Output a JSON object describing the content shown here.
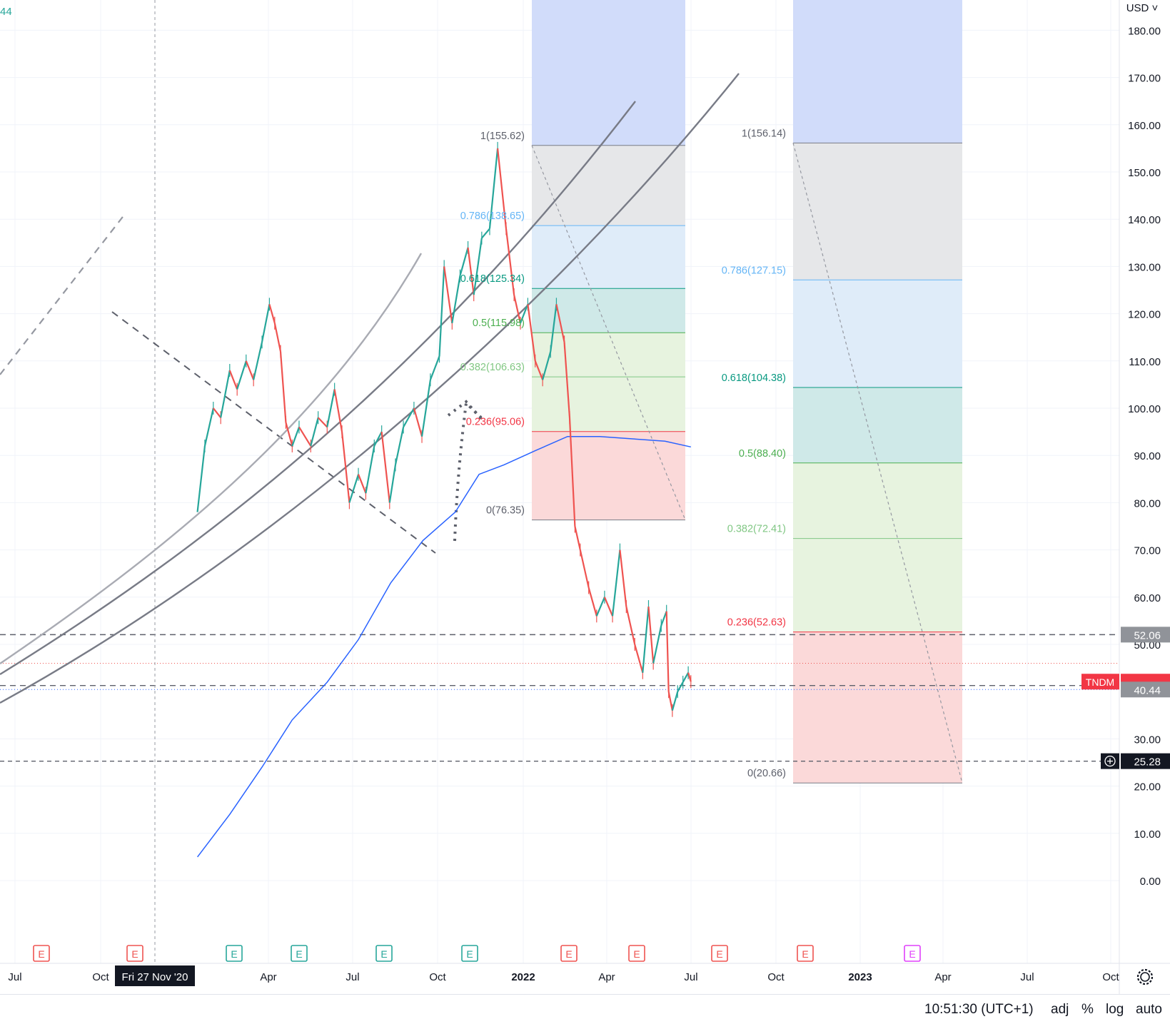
{
  "chart_data": {
    "type": "line",
    "title": "",
    "currency": "USD",
    "ticker": "TNDM",
    "yticks": [
      "180.00",
      "170.00",
      "160.00",
      "150.00",
      "140.00",
      "130.00",
      "120.00",
      "110.00",
      "100.00",
      "90.00",
      "80.00",
      "70.00",
      "60.00",
      "50.00",
      "30.00",
      "20.00",
      "10.00",
      "0.00"
    ],
    "xticks": [
      "Jul",
      "Oct",
      "Fri 27 Nov '20",
      "Apr",
      "Jul",
      "Oct",
      "2022",
      "Apr",
      "Jul",
      "Oct",
      "2023",
      "Apr",
      "Jul",
      "Oct"
    ],
    "ylim": [
      -5,
      182
    ],
    "price_badges": {
      "current_label": "TNDM",
      "current": "42.11",
      "second": "41.28",
      "level_a": "52.06",
      "level_b": "40.44",
      "level_c": "25.28"
    },
    "crosshair_date": "Fri 27 Nov '20",
    "cropped_legend": "44",
    "fib_retracement_1": {
      "levels": [
        {
          "ratio": "1",
          "value": 155.62,
          "label": "1(155.62)"
        },
        {
          "ratio": "0.786",
          "value": 138.65,
          "label": "0.786(138.65)"
        },
        {
          "ratio": "0.618",
          "value": 125.34,
          "label": "0.618(125.34)"
        },
        {
          "ratio": "0.5",
          "value": 115.98,
          "label": "0.5(115.98)"
        },
        {
          "ratio": "0.382",
          "value": 106.63,
          "label": "0.382(106.63)"
        },
        {
          "ratio": "0.236",
          "value": 95.06,
          "label": "0.236(95.06)"
        },
        {
          "ratio": "0",
          "value": 76.35,
          "label": "0(76.35)"
        }
      ]
    },
    "fib_retracement_2": {
      "levels": [
        {
          "ratio": "1",
          "value": 156.14,
          "label": "1(156.14)"
        },
        {
          "ratio": "0.786",
          "value": 127.15,
          "label": "0.786(127.15)"
        },
        {
          "ratio": "0.618",
          "value": 104.38,
          "label": "0.618(104.38)"
        },
        {
          "ratio": "0.5",
          "value": 88.4,
          "label": "0.5(88.40)"
        },
        {
          "ratio": "0.382",
          "value": 72.41,
          "label": "0.382(72.41)"
        },
        {
          "ratio": "0.236",
          "value": 52.63,
          "label": "0.236(52.63)"
        },
        {
          "ratio": "0",
          "value": 20.66,
          "label": "0(20.66)"
        }
      ]
    },
    "price_series": [
      [
        "2020-06-01",
        78
      ],
      [
        "2020-06-15",
        92
      ],
      [
        "2020-07-01",
        100
      ],
      [
        "2020-07-15",
        98
      ],
      [
        "2020-08-01",
        108
      ],
      [
        "2020-08-15",
        104
      ],
      [
        "2020-09-01",
        110
      ],
      [
        "2020-09-15",
        106
      ],
      [
        "2020-10-01",
        114
      ],
      [
        "2020-10-15",
        122
      ],
      [
        "2020-10-25",
        118
      ],
      [
        "2020-11-05",
        112
      ],
      [
        "2020-11-15",
        97
      ],
      [
        "2020-11-27",
        92
      ],
      [
        "2020-12-10",
        96
      ],
      [
        "2021-01-01",
        92
      ],
      [
        "2021-01-15",
        98
      ],
      [
        "2021-02-01",
        96
      ],
      [
        "2021-02-15",
        104
      ],
      [
        "2021-03-01",
        95
      ],
      [
        "2021-03-15",
        80
      ],
      [
        "2021-04-01",
        86
      ],
      [
        "2021-04-15",
        82
      ],
      [
        "2021-05-01",
        92
      ],
      [
        "2021-05-15",
        95
      ],
      [
        "2021-05-30",
        80
      ],
      [
        "2021-06-10",
        88
      ],
      [
        "2021-06-25",
        96
      ],
      [
        "2021-07-15",
        100
      ],
      [
        "2021-07-30",
        94
      ],
      [
        "2021-08-15",
        106
      ],
      [
        "2021-09-01",
        111
      ],
      [
        "2021-09-10",
        130
      ],
      [
        "2021-09-25",
        118
      ],
      [
        "2021-10-10",
        128
      ],
      [
        "2021-10-25",
        134
      ],
      [
        "2021-11-05",
        124
      ],
      [
        "2021-11-20",
        136
      ],
      [
        "2021-12-05",
        138
      ],
      [
        "2021-12-20",
        155
      ],
      [
        "2022-01-05",
        138
      ],
      [
        "2022-01-20",
        124
      ],
      [
        "2022-02-01",
        118
      ],
      [
        "2022-02-15",
        122
      ],
      [
        "2022-03-01",
        110
      ],
      [
        "2022-03-15",
        106
      ],
      [
        "2022-03-30",
        112
      ],
      [
        "2022-04-10",
        122
      ],
      [
        "2022-04-25",
        114
      ],
      [
        "2022-05-05",
        98
      ],
      [
        "2022-05-15",
        75
      ],
      [
        "2022-05-25",
        70
      ],
      [
        "2022-06-10",
        62
      ],
      [
        "2022-06-25",
        56
      ],
      [
        "2022-07-10",
        60
      ],
      [
        "2022-07-25",
        56
      ],
      [
        "2022-08-08",
        70
      ],
      [
        "2022-08-20",
        58
      ],
      [
        "2022-09-05",
        50
      ],
      [
        "2022-09-20",
        44
      ],
      [
        "2022-10-01",
        58
      ],
      [
        "2022-10-10",
        46
      ],
      [
        "2022-10-25",
        54
      ],
      [
        "2022-11-04",
        57
      ],
      [
        "2022-11-08",
        40
      ],
      [
        "2022-11-15",
        36
      ],
      [
        "2022-11-25",
        40
      ],
      [
        "2022-12-05",
        42
      ],
      [
        "2022-12-15",
        44
      ],
      [
        "2022-12-20",
        42.11
      ]
    ],
    "ma_series": [
      [
        "2020-06-01",
        5
      ],
      [
        "2020-08-01",
        14
      ],
      [
        "2020-10-01",
        24
      ],
      [
        "2020-11-27",
        34
      ],
      [
        "2021-02-01",
        42
      ],
      [
        "2021-04-01",
        51
      ],
      [
        "2021-06-01",
        63
      ],
      [
        "2021-08-01",
        72
      ],
      [
        "2021-10-01",
        78
      ],
      [
        "2021-11-15",
        86
      ],
      [
        "2022-01-01",
        88
      ],
      [
        "2022-03-01",
        91
      ],
      [
        "2022-05-01",
        94
      ],
      [
        "2022-07-01",
        94
      ],
      [
        "2022-09-01",
        93.5
      ],
      [
        "2022-11-01",
        93
      ],
      [
        "2022-12-20",
        91.8
      ]
    ],
    "earnings_markers": [
      {
        "label": "E",
        "kind": "miss"
      },
      {
        "label": "E",
        "kind": "miss"
      },
      {
        "label": "E",
        "kind": "beat"
      },
      {
        "label": "E",
        "kind": "beat"
      },
      {
        "label": "E",
        "kind": "beat"
      },
      {
        "label": "E",
        "kind": "beat"
      },
      {
        "label": "E",
        "kind": "miss"
      },
      {
        "label": "E",
        "kind": "miss"
      },
      {
        "label": "E",
        "kind": "miss"
      },
      {
        "label": "E",
        "kind": "miss"
      },
      {
        "label": "E",
        "kind": "upcoming"
      }
    ],
    "colors": {
      "up": "#26a69a",
      "down": "#ef5350",
      "ma": "#2962ff",
      "fib_top": "#d1dcfa",
      "fib_grey": "#e6e7e9",
      "fib_lightblue": "#dfecf9",
      "fib_teal": "#cfe9e8",
      "fib_green": "#e7f3df",
      "fib_red": "#fbd9d9",
      "badge_red": "#f23645",
      "badge_grey": "#909399",
      "badge_dark": "#131722",
      "upcoming": "#e040fb"
    }
  },
  "status_bar": {
    "time": "10:51:30 (UTC+1)",
    "adj": "adj",
    "percent": "%",
    "log": "log",
    "auto": "auto"
  },
  "header": {
    "currency_menu": "USD"
  }
}
